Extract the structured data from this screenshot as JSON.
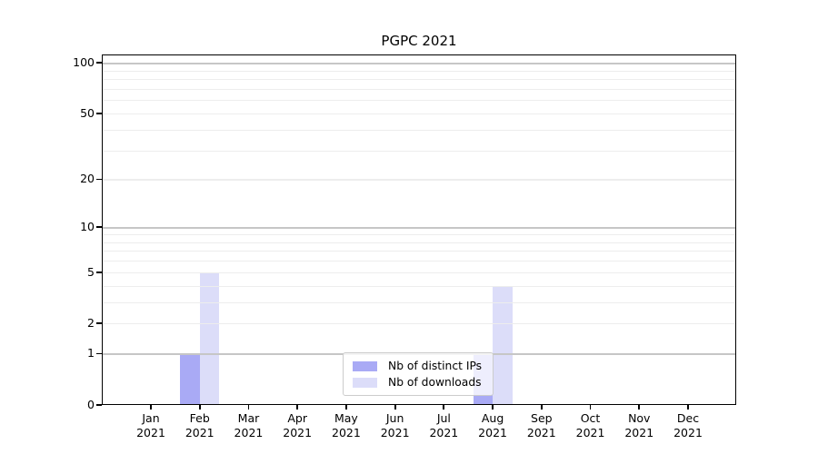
{
  "chart_data": {
    "type": "bar",
    "title": "PGPC 2021",
    "categories": [
      "Jan",
      "Feb",
      "Mar",
      "Apr",
      "May",
      "Jun",
      "Jul",
      "Aug",
      "Sep",
      "Oct",
      "Nov",
      "Dec"
    ],
    "category_year": "2021",
    "series": [
      {
        "name": "Nb of distinct IPs",
        "color": "#a9aaf5",
        "values": [
          0,
          1,
          0,
          0,
          0,
          0,
          0,
          1,
          0,
          0,
          0,
          0
        ]
      },
      {
        "name": "Nb of downloads",
        "color": "#dcddf9",
        "values": [
          0,
          5,
          0,
          0,
          0,
          0,
          0,
          4,
          0,
          0,
          0,
          0
        ]
      }
    ],
    "y_ticks": [
      100,
      50,
      20,
      10,
      5,
      2,
      1,
      0
    ],
    "y_scale": "log10(1+value)",
    "ylim": [
      0,
      112
    ],
    "xlabel": "",
    "ylabel": "",
    "grid": {
      "major_values": [
        1,
        10,
        100
      ],
      "minor_values": [
        2,
        3,
        4,
        5,
        6,
        7,
        8,
        9,
        20,
        30,
        40,
        50,
        60,
        70,
        80,
        90
      ],
      "major_color": "#c6c6c6",
      "minor_color": "#ededed"
    },
    "legend": {
      "position": "lower center",
      "entries": [
        "Nb of distinct IPs",
        "Nb of downloads"
      ]
    },
    "colors": {
      "axis": "#000000",
      "background": "#ffffff"
    }
  }
}
